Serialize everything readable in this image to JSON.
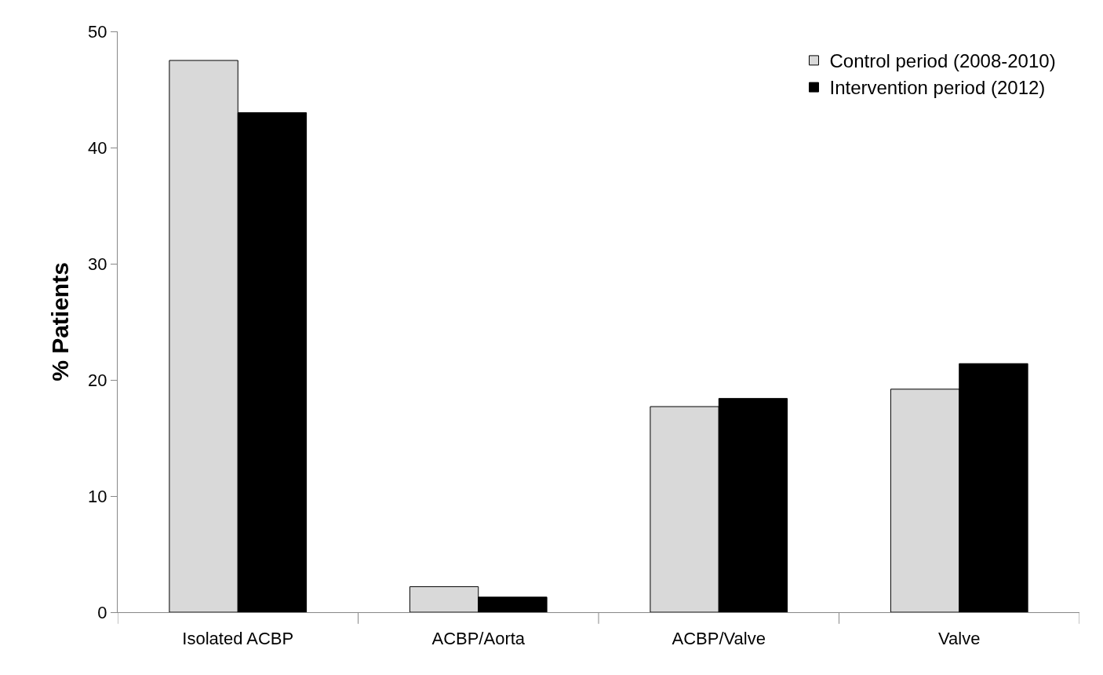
{
  "chart_data": {
    "type": "bar",
    "ylabel": "% Patients",
    "categories": [
      "Isolated ACBP",
      "ACBP/Aorta",
      "ACBP/Valve",
      "Valve"
    ],
    "series": [
      {
        "name": "Control period (2008-2010)",
        "color": "#d9d9d9",
        "values": [
          47.5,
          2.2,
          17.7,
          19.2
        ]
      },
      {
        "name": "Intervention period (2012)",
        "color": "#000000",
        "values": [
          43.0,
          1.3,
          18.4,
          21.4
        ]
      }
    ],
    "ylim": [
      0,
      50
    ],
    "yticks": [
      0,
      10,
      20,
      30,
      40,
      50
    ],
    "legend": "top right"
  }
}
